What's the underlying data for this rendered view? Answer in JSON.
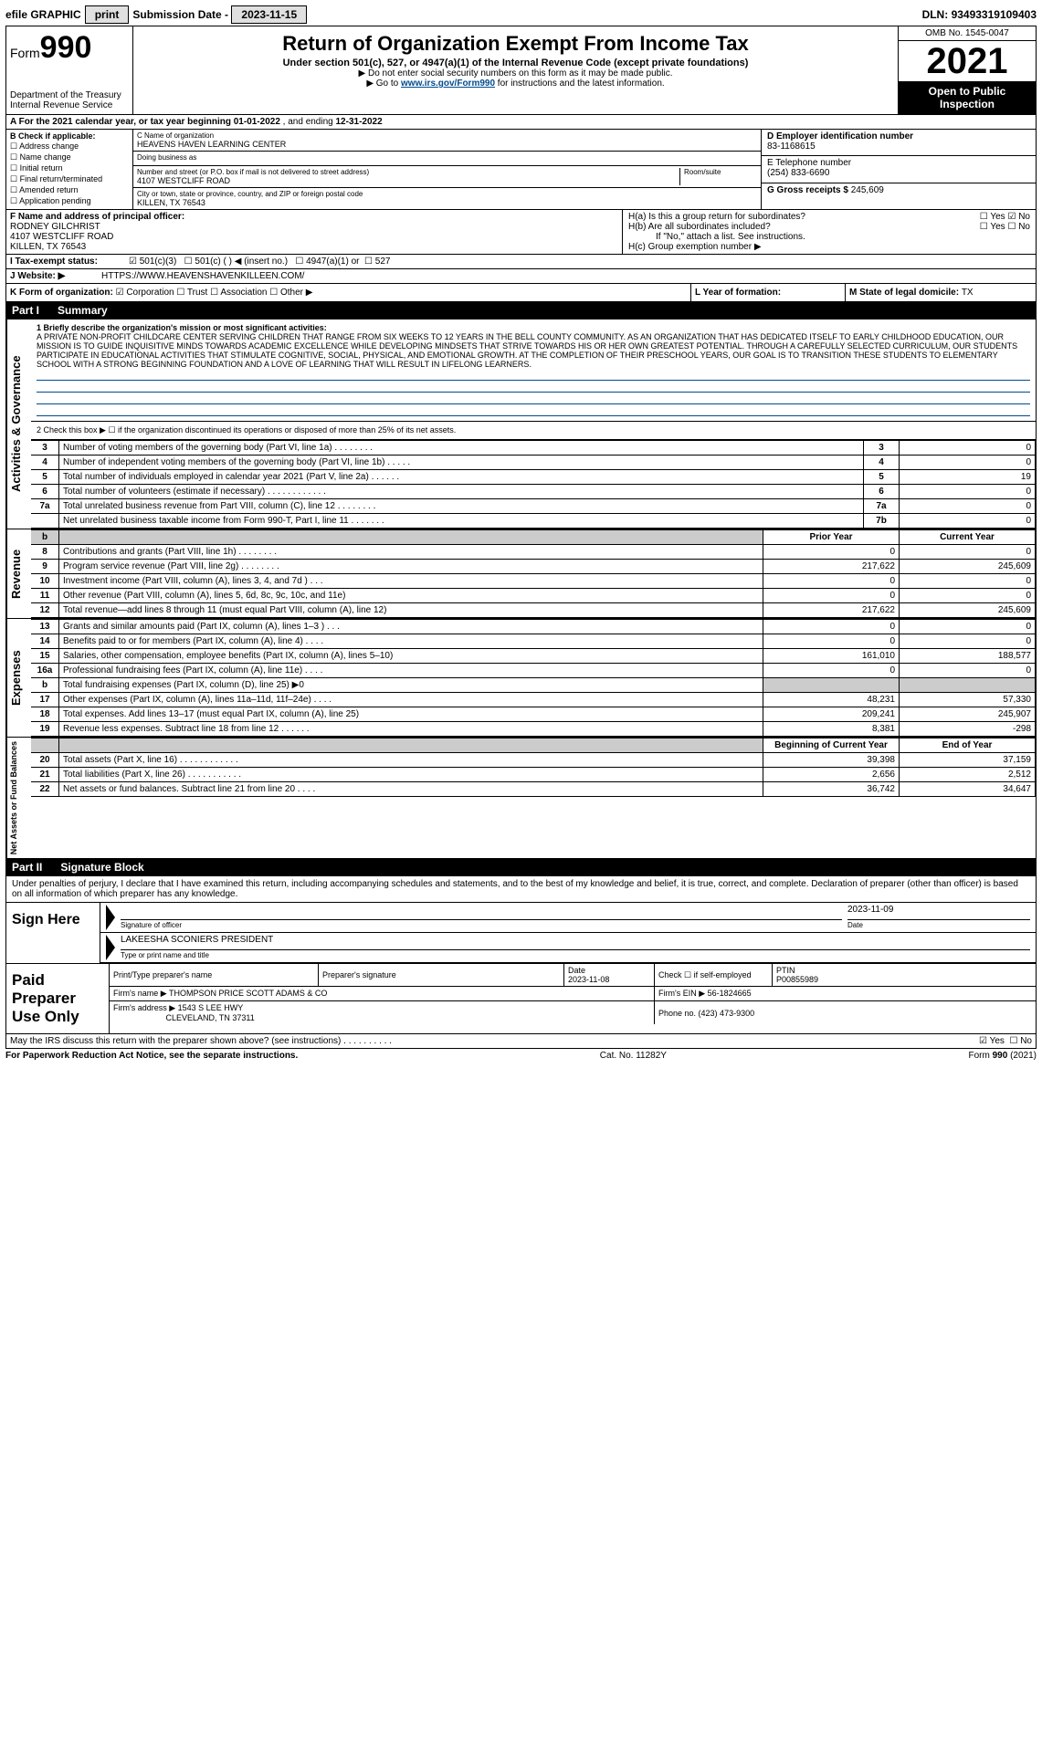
{
  "topbar": {
    "efile": "efile GRAPHIC",
    "print": "print",
    "sub_label": "Submission Date - ",
    "sub_date": "2023-11-15",
    "dln_label": "DLN: ",
    "dln": "93493319109403"
  },
  "header": {
    "form_prefix": "Form",
    "form_num": "990",
    "dept": "Department of the Treasury Internal Revenue Service",
    "title": "Return of Organization Exempt From Income Tax",
    "sub": "Under section 501(c), 527, or 4947(a)(1) of the Internal Revenue Code (except private foundations)",
    "note1": "▶ Do not enter social security numbers on this form as it may be made public.",
    "note2_pre": "▶ Go to ",
    "note2_link": "www.irs.gov/Form990",
    "note2_post": " for instructions and the latest information.",
    "omb": "OMB No. 1545-0047",
    "year": "2021",
    "open": "Open to Public Inspection"
  },
  "rowA": {
    "text_pre": "A For the 2021 calendar year, or tax year beginning ",
    "begin": "01-01-2022",
    "mid": " , and ending ",
    "end": "12-31-2022"
  },
  "colB": {
    "label": "B Check if applicable:",
    "items": [
      "Address change",
      "Name change",
      "Initial return",
      "Final return/terminated",
      "Amended return",
      "Application pending"
    ]
  },
  "colC": {
    "name_label": "C Name of organization",
    "name": "HEAVENS HAVEN LEARNING CENTER",
    "dba_label": "Doing business as",
    "dba": "",
    "addr_label": "Number and street (or P.O. box if mail is not delivered to street address)",
    "room_label": "Room/suite",
    "addr": "4107 WESTCLIFF ROAD",
    "city_label": "City or town, state or province, country, and ZIP or foreign postal code",
    "city": "KILLEN, TX  76543"
  },
  "colD": {
    "d_label": "D Employer identification number",
    "ein": "83-1168615",
    "e_label": "E Telephone number",
    "phone": "(254) 833-6690",
    "g_label": "G Gross receipts $ ",
    "gross": "245,609"
  },
  "rowF": {
    "f_label": "F Name and address of principal officer:",
    "f_name": "RODNEY GILCHRIST",
    "f_addr1": "4107 WESTCLIFF ROAD",
    "f_addr2": "KILLEN, TX  76543",
    "h_a": "H(a)  Is this a group return for subordinates?",
    "h_b": "H(b)  Are all subordinates included?",
    "h_b_note": "If \"No,\" attach a list. See instructions.",
    "h_c": "H(c)  Group exemption number ▶",
    "yes": "Yes",
    "no": "No"
  },
  "rowI": {
    "label": "I  Tax-exempt status:",
    "o1": "501(c)(3)",
    "o2": "501(c) (   ) ◀ (insert no.)",
    "o3": "4947(a)(1) or",
    "o4": "527"
  },
  "rowJ": {
    "label": "J  Website: ▶",
    "url": "HTTPS://WWW.HEAVENSHAVENKILLEEN.COM/"
  },
  "rowK": {
    "k": "K Form of organization:",
    "corp": "Corporation",
    "trust": "Trust",
    "assoc": "Association",
    "other": "Other ▶",
    "l": "L Year of formation:",
    "m": "M State of legal domicile: ",
    "state": "TX"
  },
  "part1": {
    "hdr_num": "Part I",
    "hdr_txt": "Summary",
    "tab1": "Activities & Governance",
    "line1_label": "1  Briefly describe the organization's mission or most significant activities:",
    "mission": "A PRIVATE NON-PROFIT CHILDCARE CENTER SERVING CHILDREN THAT RANGE FROM SIX WEEKS TO 12 YEARS IN THE BELL COUNTY COMMUNITY. AS AN ORGANIZATION THAT HAS DEDICATED ITSELF TO EARLY CHILDHOOD EDUCATION, OUR MISSION IS TO GUIDE INQUISITIVE MINDS TOWARDS ACADEMIC EXCELLENCE WHILE DEVELOPING MINDSETS THAT STRIVE TOWARDS HIS OR HER OWN GREATEST POTENTIAL. THROUGH A CAREFULLY SELECTED CURRICULUM, OUR STUDENTS PARTICIPATE IN EDUCATIONAL ACTIVITIES THAT STIMULATE COGNITIVE, SOCIAL, PHYSICAL, AND EMOTIONAL GROWTH. AT THE COMPLETION OF THEIR PRESCHOOL YEARS, OUR GOAL IS TO TRANSITION THESE STUDENTS TO ELEMENTARY SCHOOL WITH A STRONG BEGINNING FOUNDATION AND A LOVE OF LEARNING THAT WILL RESULT IN LIFELONG LEARNERS.",
    "line2": "2  Check this box ▶ ☐ if the organization discontinued its operations or disposed of more than 25% of its net assets.",
    "rows_ag": [
      {
        "n": "3",
        "d": "Number of voting members of the governing body (Part VI, line 1a)  .   .   .   .   .   .   .   .",
        "b": "3",
        "v": "0"
      },
      {
        "n": "4",
        "d": "Number of independent voting members of the governing body (Part VI, line 1b)  .   .   .   .   .",
        "b": "4",
        "v": "0"
      },
      {
        "n": "5",
        "d": "Total number of individuals employed in calendar year 2021 (Part V, line 2a)  .   .   .   .   .   .",
        "b": "5",
        "v": "19"
      },
      {
        "n": "6",
        "d": "Total number of volunteers (estimate if necessary)  .   .   .   .   .   .   .   .   .   .   .   .",
        "b": "6",
        "v": "0"
      },
      {
        "n": "7a",
        "d": "Total unrelated business revenue from Part VIII, column (C), line 12  .   .   .   .   .   .   .   .",
        "b": "7a",
        "v": "0"
      },
      {
        "n": "",
        "d": "Net unrelated business taxable income from Form 990-T, Part I, line 11  .   .   .   .   .   .   .",
        "b": "7b",
        "v": "0"
      }
    ],
    "hdr_prior": "Prior Year",
    "hdr_curr": "Current Year",
    "tab_rev": "Revenue",
    "rows_rev": [
      {
        "n": "8",
        "d": "Contributions and grants (Part VIII, line 1h)  .   .   .   .   .   .   .   .",
        "p": "0",
        "c": "0"
      },
      {
        "n": "9",
        "d": "Program service revenue (Part VIII, line 2g)  .   .   .   .   .   .   .   .",
        "p": "217,622",
        "c": "245,609"
      },
      {
        "n": "10",
        "d": "Investment income (Part VIII, column (A), lines 3, 4, and 7d )  .   .   .",
        "p": "0",
        "c": "0"
      },
      {
        "n": "11",
        "d": "Other revenue (Part VIII, column (A), lines 5, 6d, 8c, 9c, 10c, and 11e)",
        "p": "0",
        "c": "0"
      },
      {
        "n": "12",
        "d": "Total revenue—add lines 8 through 11 (must equal Part VIII, column (A), line 12)",
        "p": "217,622",
        "c": "245,609"
      }
    ],
    "tab_exp": "Expenses",
    "rows_exp": [
      {
        "n": "13",
        "d": "Grants and similar amounts paid (Part IX, column (A), lines 1–3 )  .   .   .",
        "p": "0",
        "c": "0"
      },
      {
        "n": "14",
        "d": "Benefits paid to or for members (Part IX, column (A), line 4)  .   .   .   .",
        "p": "0",
        "c": "0"
      },
      {
        "n": "15",
        "d": "Salaries, other compensation, employee benefits (Part IX, column (A), lines 5–10)",
        "p": "161,010",
        "c": "188,577"
      },
      {
        "n": "16a",
        "d": "Professional fundraising fees (Part IX, column (A), line 11e)  .   .   .   .",
        "p": "0",
        "c": "0"
      },
      {
        "n": "b",
        "d": "Total fundraising expenses (Part IX, column (D), line 25) ▶0",
        "p": "",
        "c": "",
        "shade": true
      },
      {
        "n": "17",
        "d": "Other expenses (Part IX, column (A), lines 11a–11d, 11f–24e)  .   .   .   .",
        "p": "48,231",
        "c": "57,330"
      },
      {
        "n": "18",
        "d": "Total expenses. Add lines 13–17 (must equal Part IX, column (A), line 25)",
        "p": "209,241",
        "c": "245,907"
      },
      {
        "n": "19",
        "d": "Revenue less expenses. Subtract line 18 from line 12  .   .   .   .   .   .",
        "p": "8,381",
        "c": "-298"
      }
    ],
    "hdr_beg": "Beginning of Current Year",
    "hdr_end": "End of Year",
    "tab_net": "Net Assets or Fund Balances",
    "rows_net": [
      {
        "n": "20",
        "d": "Total assets (Part X, line 16)  .   .   .   .   .   .   .   .   .   .   .   .",
        "p": "39,398",
        "c": "37,159"
      },
      {
        "n": "21",
        "d": "Total liabilities (Part X, line 26)  .   .   .   .   .   .   .   .   .   .   .",
        "p": "2,656",
        "c": "2,512"
      },
      {
        "n": "22",
        "d": "Net assets or fund balances. Subtract line 21 from line 20  .   .   .   .",
        "p": "36,742",
        "c": "34,647"
      }
    ]
  },
  "part2": {
    "hdr_num": "Part II",
    "hdr_txt": "Signature Block",
    "penalties": "Under penalties of perjury, I declare that I have examined this return, including accompanying schedules and statements, and to the best of my knowledge and belief, it is true, correct, and complete. Declaration of preparer (other than officer) is based on all information of which preparer has any knowledge.",
    "sign_here": "Sign Here",
    "sig_officer": "Signature of officer",
    "date1": "2023-11-09",
    "date_lbl": "Date",
    "officer": "LAKEESHA SCONIERS PRESIDENT",
    "type_lbl": "Type or print name and title",
    "paid_lbl1": "Paid",
    "paid_lbl2": "Preparer",
    "paid_lbl3": "Use Only",
    "pt_name_lbl": "Print/Type preparer's name",
    "pt_sig_lbl": "Preparer's signature",
    "pt_date_lbl": "Date",
    "pt_date": "2023-11-08",
    "pt_check_lbl": "Check ☐ if self-employed",
    "pt_ptin_lbl": "PTIN",
    "pt_ptin": "P00855989",
    "firm_name_lbl": "Firm's name    ▶ ",
    "firm_name": "THOMPSON PRICE SCOTT ADAMS & CO",
    "firm_ein_lbl": "Firm's EIN ▶ ",
    "firm_ein": "56-1824665",
    "firm_addr_lbl": "Firm's address ▶ ",
    "firm_addr1": "1543 S LEE HWY",
    "firm_addr2": "CLEVELAND, TN  37311",
    "firm_phone_lbl": "Phone no. ",
    "firm_phone": "(423) 473-9300",
    "discuss": "May the IRS discuss this return with the preparer shown above? (see instructions)  .   .   .   .   .   .   .   .   .   .",
    "yes": "Yes",
    "no": "No"
  },
  "footer": {
    "pra": "For Paperwork Reduction Act Notice, see the separate instructions.",
    "cat": "Cat. No. 11282Y",
    "form": "Form 990 (2021)"
  }
}
